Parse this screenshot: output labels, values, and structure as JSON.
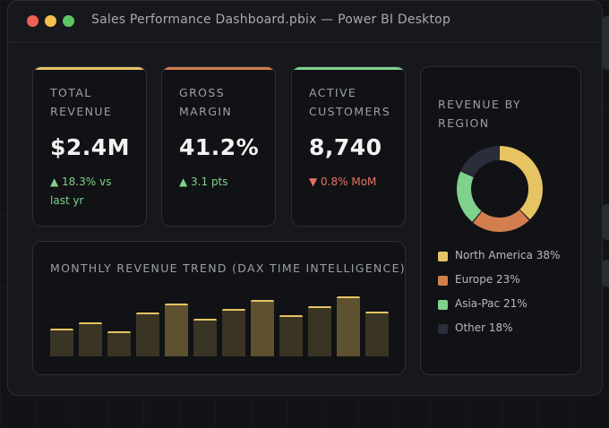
{
  "window": {
    "title": "Sales Performance Dashboard.pbix — Power BI Desktop"
  },
  "kpis": [
    {
      "label": "TOTAL REVENUE",
      "value": "$2.4M",
      "delta": "▲ 18.3% vs last yr",
      "direction": "up",
      "accent": "#e6c463"
    },
    {
      "label": "GROSS MARGIN",
      "value": "41.2%",
      "delta": "▲ 3.1 pts",
      "direction": "up",
      "accent": "#d47d4e"
    },
    {
      "label": "ACTIVE CUSTOMERS",
      "value": "8,740",
      "delta": "▼ 0.8% MoM",
      "direction": "down",
      "accent": "#7fd18b"
    }
  ],
  "trend": {
    "title": "MONTHLY REVENUE TREND (DAX TIME INTELLIGENCE)",
    "chart_data": {
      "type": "bar",
      "values": [
        33,
        41,
        30,
        52,
        63,
        45,
        57,
        68,
        49,
        60,
        72,
        54
      ],
      "highlighted": [
        false,
        false,
        false,
        false,
        true,
        false,
        false,
        true,
        false,
        false,
        true,
        false
      ],
      "bar_color": "#e6c463"
    }
  },
  "region": {
    "title": "REVENUE BY REGION",
    "chart_data": {
      "type": "pie",
      "labels": [
        "North America",
        "Europe",
        "Asia-Pac",
        "Other"
      ],
      "values": [
        38,
        23,
        21,
        18
      ],
      "colors": [
        "#e6c463",
        "#d47d4e",
        "#7fd18b",
        "#2a2d3a"
      ]
    },
    "legend": [
      {
        "label": "North America 38%",
        "color": "#e6c463"
      },
      {
        "label": "Europe 23%",
        "color": "#d47d4e"
      },
      {
        "label": "Asia-Pac 21%",
        "color": "#7fd18b"
      },
      {
        "label": "Other 18%",
        "color": "#2a2d3a"
      }
    ]
  }
}
